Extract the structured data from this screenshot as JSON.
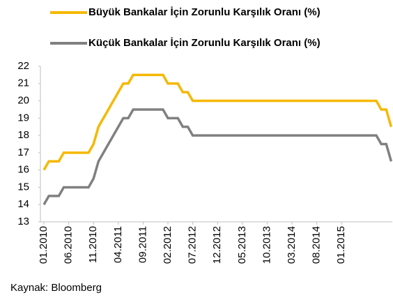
{
  "chart_data": {
    "type": "line",
    "source": "Kaynak: Bloomberg",
    "categories": [
      "01.2010",
      null,
      null,
      null,
      null,
      "06.2010",
      null,
      null,
      null,
      null,
      "11.2010",
      null,
      null,
      null,
      null,
      "04.2011",
      null,
      null,
      null,
      null,
      "09.2011",
      null,
      null,
      null,
      null,
      "02.2012",
      null,
      null,
      null,
      null,
      "07.2012",
      null,
      null,
      null,
      null,
      "12.2012",
      null,
      null,
      null,
      null,
      "05.2013",
      null,
      null,
      null,
      null,
      "10.2013",
      null,
      null,
      null,
      null,
      "03.2014",
      null,
      null,
      null,
      null,
      "08.2014",
      null,
      null,
      null,
      null,
      "01.2015",
      null,
      null,
      null,
      null,
      null,
      null,
      null,
      null,
      null,
      null
    ],
    "series": [
      {
        "name": "Büyük Bankalar İçin Zorunlu Karşılık Oranı (%)",
        "color": "#f5b800",
        "values": [
          16,
          16.5,
          16.5,
          16.5,
          17,
          17,
          17,
          17,
          17,
          17,
          17.5,
          18.5,
          19,
          19.5,
          20,
          20.5,
          21,
          21,
          21.5,
          21.5,
          21.5,
          21.5,
          21.5,
          21.5,
          21.5,
          21,
          21,
          21,
          20.5,
          20.5,
          20,
          20,
          20,
          20,
          20,
          20,
          20,
          20,
          20,
          20,
          20,
          20,
          20,
          20,
          20,
          20,
          20,
          20,
          20,
          20,
          20,
          20,
          20,
          20,
          20,
          20,
          20,
          20,
          20,
          20,
          20,
          20,
          20,
          20,
          20,
          20,
          20,
          20,
          19.5,
          19.5,
          18.5
        ]
      },
      {
        "name": "Küçük Bankalar İçin Zorunlu Karşılık Oranı (%)",
        "color": "#808080",
        "values": [
          14,
          14.5,
          14.5,
          14.5,
          15,
          15,
          15,
          15,
          15,
          15,
          15.5,
          16.5,
          17,
          17.5,
          18,
          18.5,
          19,
          19,
          19.5,
          19.5,
          19.5,
          19.5,
          19.5,
          19.5,
          19.5,
          19,
          19,
          19,
          18.5,
          18.5,
          18,
          18,
          18,
          18,
          18,
          18,
          18,
          18,
          18,
          18,
          18,
          18,
          18,
          18,
          18,
          18,
          18,
          18,
          18,
          18,
          18,
          18,
          18,
          18,
          18,
          18,
          18,
          18,
          18,
          18,
          18,
          18,
          18,
          18,
          18,
          18,
          18,
          18,
          17.5,
          17.5,
          16.5
        ]
      }
    ],
    "ylim": [
      13,
      22
    ],
    "yticks": [
      13,
      14,
      15,
      16,
      17,
      18,
      19,
      20,
      21,
      22
    ]
  }
}
